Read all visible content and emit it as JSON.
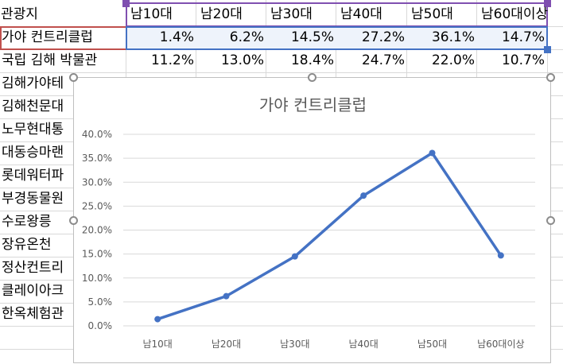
{
  "sheet": {
    "header_row": {
      "label": "관광지",
      "columns": [
        "남10대",
        "남20대",
        "남30대",
        "남40대",
        "남50대",
        "남60대이상"
      ]
    },
    "rows": [
      {
        "name": "가야 컨트리클럽",
        "values": [
          "1.4%",
          "6.2%",
          "14.5%",
          "27.2%",
          "36.1%",
          "14.7%"
        ]
      },
      {
        "name": "국립 김해 박물관",
        "values": [
          "11.2%",
          "13.0%",
          "18.4%",
          "24.7%",
          "22.0%",
          "10.7%"
        ]
      }
    ],
    "truncated_rows": [
      "김해가야테",
      "김해천문대",
      "노무현대통",
      "대동승마랜",
      "롯데워터파",
      "부경동물원",
      "수로왕릉",
      "장유온천",
      "정산컨트리",
      "클레이아크",
      "한옥체험관"
    ]
  },
  "chart_data": {
    "type": "line",
    "title": "가야 컨트리클럽",
    "categories": [
      "남10대",
      "남20대",
      "남30대",
      "남40대",
      "남50대",
      "남60대이상"
    ],
    "values": [
      1.4,
      6.2,
      14.5,
      27.2,
      36.1,
      14.7
    ],
    "y_ticks": [
      "0.0%",
      "5.0%",
      "10.0%",
      "15.0%",
      "20.0%",
      "25.0%",
      "30.0%",
      "35.0%",
      "40.0%"
    ],
    "ylim": [
      0,
      40
    ],
    "grid": true,
    "legend": "none",
    "line_color": "#4472c4"
  },
  "colors": {
    "header_highlight": "#7f4fb0",
    "row_name_highlight": "#c0504d",
    "data_highlight": "#4472c4",
    "grid": "#d9d9d9"
  }
}
